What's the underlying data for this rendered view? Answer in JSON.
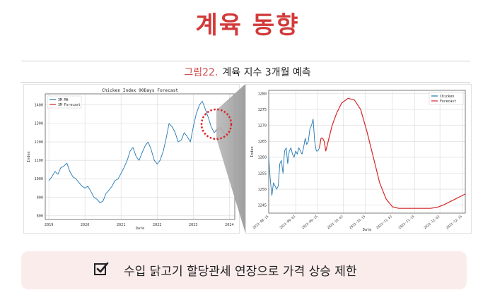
{
  "header": {
    "title": "계육 동향"
  },
  "figure": {
    "number": "그림22.",
    "caption": "계육 지수 3개월 예측"
  },
  "banner": {
    "text": "수입 닭고기 할당관세 연장으로 가격 상승 제한",
    "icon": "checkbox-icon"
  },
  "colors": {
    "title": "#d23a3a",
    "series_ma": "#1f77b4",
    "series_forecast": "#d62728",
    "banner_bg": "#fbecec"
  },
  "chart_data": [
    {
      "type": "line",
      "title": "Chicken Index 90Days Forecast",
      "xlabel": "Date",
      "ylabel": "Index",
      "xlim": [
        2018.9,
        2024.15
      ],
      "ylim": [
        780,
        1460
      ],
      "xticks": [
        2019,
        2020,
        2021,
        2022,
        2023,
        2024
      ],
      "yticks": [
        800,
        900,
        1000,
        1100,
        1200,
        1300,
        1400
      ],
      "grid": true,
      "legend": "top-left",
      "annotation": "dotted circle around the forecast segment",
      "series": [
        {
          "name": "3M MA",
          "x": [
            2019.0,
            2019.08,
            2019.17,
            2019.25,
            2019.33,
            2019.42,
            2019.5,
            2019.58,
            2019.67,
            2019.75,
            2019.83,
            2019.92,
            2020.0,
            2020.08,
            2020.17,
            2020.25,
            2020.33,
            2020.42,
            2020.5,
            2020.58,
            2020.67,
            2020.75,
            2020.83,
            2020.92,
            2021.0,
            2021.08,
            2021.17,
            2021.25,
            2021.33,
            2021.42,
            2021.5,
            2021.58,
            2021.67,
            2021.75,
            2021.83,
            2021.92,
            2022.0,
            2022.08,
            2022.17,
            2022.25,
            2022.33,
            2022.42,
            2022.5,
            2022.58,
            2022.67,
            2022.75,
            2022.83,
            2022.92,
            2023.0,
            2023.08,
            2023.17,
            2023.25,
            2023.33,
            2023.42,
            2023.5,
            2023.58,
            2023.67,
            2023.75
          ],
          "y": [
            990,
            1010,
            1040,
            1025,
            1060,
            1070,
            1085,
            1040,
            1010,
            1000,
            980,
            960,
            950,
            960,
            930,
            900,
            890,
            870,
            880,
            920,
            940,
            960,
            990,
            1000,
            1030,
            1060,
            1100,
            1150,
            1170,
            1120,
            1100,
            1140,
            1180,
            1200,
            1160,
            1100,
            1080,
            1100,
            1150,
            1220,
            1300,
            1280,
            1250,
            1200,
            1210,
            1250,
            1230,
            1200,
            1280,
            1350,
            1400,
            1420,
            1380,
            1330,
            1280,
            1250,
            1270,
            1260
          ]
        },
        {
          "name": "3M Forecast",
          "x": [
            2023.62,
            2023.65,
            2023.68,
            2023.71,
            2023.74,
            2023.78,
            2023.81,
            2023.84,
            2023.87,
            2023.9
          ],
          "y": [
            1262,
            1266,
            1272,
            1276,
            1277,
            1270,
            1260,
            1250,
            1246,
            1248
          ]
        }
      ]
    },
    {
      "type": "line",
      "xlabel": "Date",
      "ylabel": "Index",
      "xlim": [
        0,
        124
      ],
      "ylim": [
        1242.5,
        1281
      ],
      "xticks": [
        "2023-08-15",
        "2023-09-01",
        "2023-09-15",
        "2023-10-01",
        "2023-10-15",
        "2023-11-01",
        "2023-11-15",
        "2023-12-01",
        "2023-12-15"
      ],
      "xtick_days": [
        0,
        17,
        31,
        47,
        61,
        78,
        92,
        108,
        122
      ],
      "yticks": [
        1245,
        1250,
        1255,
        1260,
        1265,
        1270,
        1275,
        1280
      ],
      "grid": true,
      "legend": "top-right",
      "series": [
        {
          "name": "Chicken",
          "x": [
            0,
            1,
            2,
            3,
            4,
            5,
            6,
            7,
            8,
            9,
            10,
            11,
            12,
            13,
            14,
            15,
            16,
            17,
            18,
            19,
            20,
            21,
            22,
            23,
            24,
            25,
            26,
            27,
            28,
            29,
            30,
            31,
            32
          ],
          "y": [
            1260,
            1253,
            1248,
            1252,
            1251,
            1250,
            1251,
            1258,
            1259,
            1255,
            1262,
            1263,
            1258,
            1262,
            1263,
            1261,
            1260,
            1262,
            1261,
            1263,
            1262,
            1261,
            1263,
            1266,
            1264,
            1265,
            1269,
            1270,
            1272,
            1265,
            1262,
            1262,
            1263
          ]
        },
        {
          "name": "Forecast",
          "x": [
            32,
            33,
            34,
            35,
            36,
            37,
            38,
            40,
            43,
            46,
            50,
            54,
            58,
            62,
            66,
            70,
            74,
            78,
            82,
            86,
            90,
            94,
            98,
            102,
            106,
            110,
            114,
            118,
            122,
            124
          ],
          "y": [
            1263,
            1266,
            1266,
            1265,
            1262,
            1264,
            1266,
            1270,
            1274,
            1277,
            1278.5,
            1278,
            1275,
            1268,
            1260,
            1252,
            1247,
            1244.5,
            1244,
            1244,
            1244,
            1244,
            1244,
            1244,
            1244.3,
            1245,
            1246,
            1247,
            1248,
            1248.5
          ]
        }
      ]
    }
  ]
}
